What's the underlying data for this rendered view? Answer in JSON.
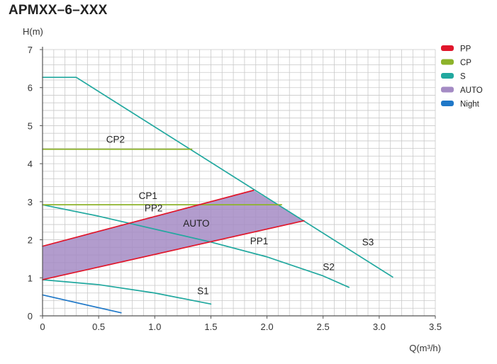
{
  "chart_data": {
    "type": "line",
    "title": "APMXX–6–XXX",
    "ylabel": "H(m)",
    "xlabel": "Q(m³/h)",
    "xlim": [
      0,
      3.5
    ],
    "ylim": [
      0,
      7
    ],
    "x_ticks": [
      "0",
      "0.5",
      "1.0",
      "1.5",
      "2.0",
      "2.5",
      "3.0",
      "3.5"
    ],
    "x_tick_values": [
      0,
      0.5,
      1.0,
      1.5,
      2.0,
      2.5,
      3.0,
      3.5
    ],
    "y_ticks": [
      "0",
      "1",
      "2",
      "3",
      "4",
      "5",
      "6",
      "7"
    ],
    "y_tick_values": [
      0,
      1,
      2,
      3,
      4,
      5,
      6,
      7
    ],
    "grid": true,
    "legend_position": "right",
    "legend": [
      {
        "label": "PP",
        "color": "#e0162b"
      },
      {
        "label": "CP",
        "color": "#8db32b"
      },
      {
        "label": "S",
        "color": "#21a89f"
      },
      {
        "label": "AUTO",
        "color": "#a48bc4"
      },
      {
        "label": "Night",
        "color": "#1f78c8"
      }
    ],
    "auto_region": {
      "name": "AUTO",
      "color": "#a48bc4",
      "points": [
        [
          0,
          1.83
        ],
        [
          1.88,
          3.3
        ],
        [
          2.33,
          2.5
        ],
        [
          0,
          0.95
        ]
      ]
    },
    "series": [
      {
        "name": "S3",
        "color": "#21a89f",
        "x": [
          0,
          0.3,
          3.12
        ],
        "y": [
          6.27,
          6.27,
          1.02
        ]
      },
      {
        "name": "S2",
        "color": "#21a89f",
        "x": [
          0,
          0.5,
          1.0,
          1.5,
          2.0,
          2.5,
          2.73
        ],
        "y": [
          2.92,
          2.62,
          2.28,
          1.94,
          1.55,
          1.05,
          0.75
        ]
      },
      {
        "name": "S1",
        "color": "#21a89f",
        "x": [
          0,
          0.5,
          1.0,
          1.5
        ],
        "y": [
          0.95,
          0.82,
          0.6,
          0.31
        ]
      },
      {
        "name": "CP2",
        "color": "#8db32b",
        "x": [
          0,
          1.33
        ],
        "y": [
          4.38,
          4.38
        ]
      },
      {
        "name": "CP1",
        "color": "#8db32b",
        "x": [
          0,
          2.13
        ],
        "y": [
          2.92,
          2.92
        ]
      },
      {
        "name": "PP2",
        "color": "#e0162b",
        "x": [
          0,
          1.88
        ],
        "y": [
          1.83,
          3.3
        ]
      },
      {
        "name": "PP1",
        "color": "#e0162b",
        "x": [
          0,
          2.33
        ],
        "y": [
          0.95,
          2.5
        ]
      },
      {
        "name": "Night",
        "color": "#1f78c8",
        "x": [
          0,
          0.7
        ],
        "y": [
          0.55,
          0.08
        ]
      }
    ],
    "annotations": [
      {
        "text": "S3",
        "x": 2.9,
        "y": 1.85
      },
      {
        "text": "S2",
        "x": 2.55,
        "y": 1.2
      },
      {
        "text": "S1",
        "x": 1.43,
        "y": 0.57
      },
      {
        "text": "CP2",
        "x": 0.65,
        "y": 4.55
      },
      {
        "text": "CP1",
        "x": 0.94,
        "y": 3.07
      },
      {
        "text": "PP2",
        "x": 0.99,
        "y": 2.75
      },
      {
        "text": "AUTO",
        "x": 1.37,
        "y": 2.35
      },
      {
        "text": "PP1",
        "x": 1.93,
        "y": 1.88
      }
    ]
  }
}
